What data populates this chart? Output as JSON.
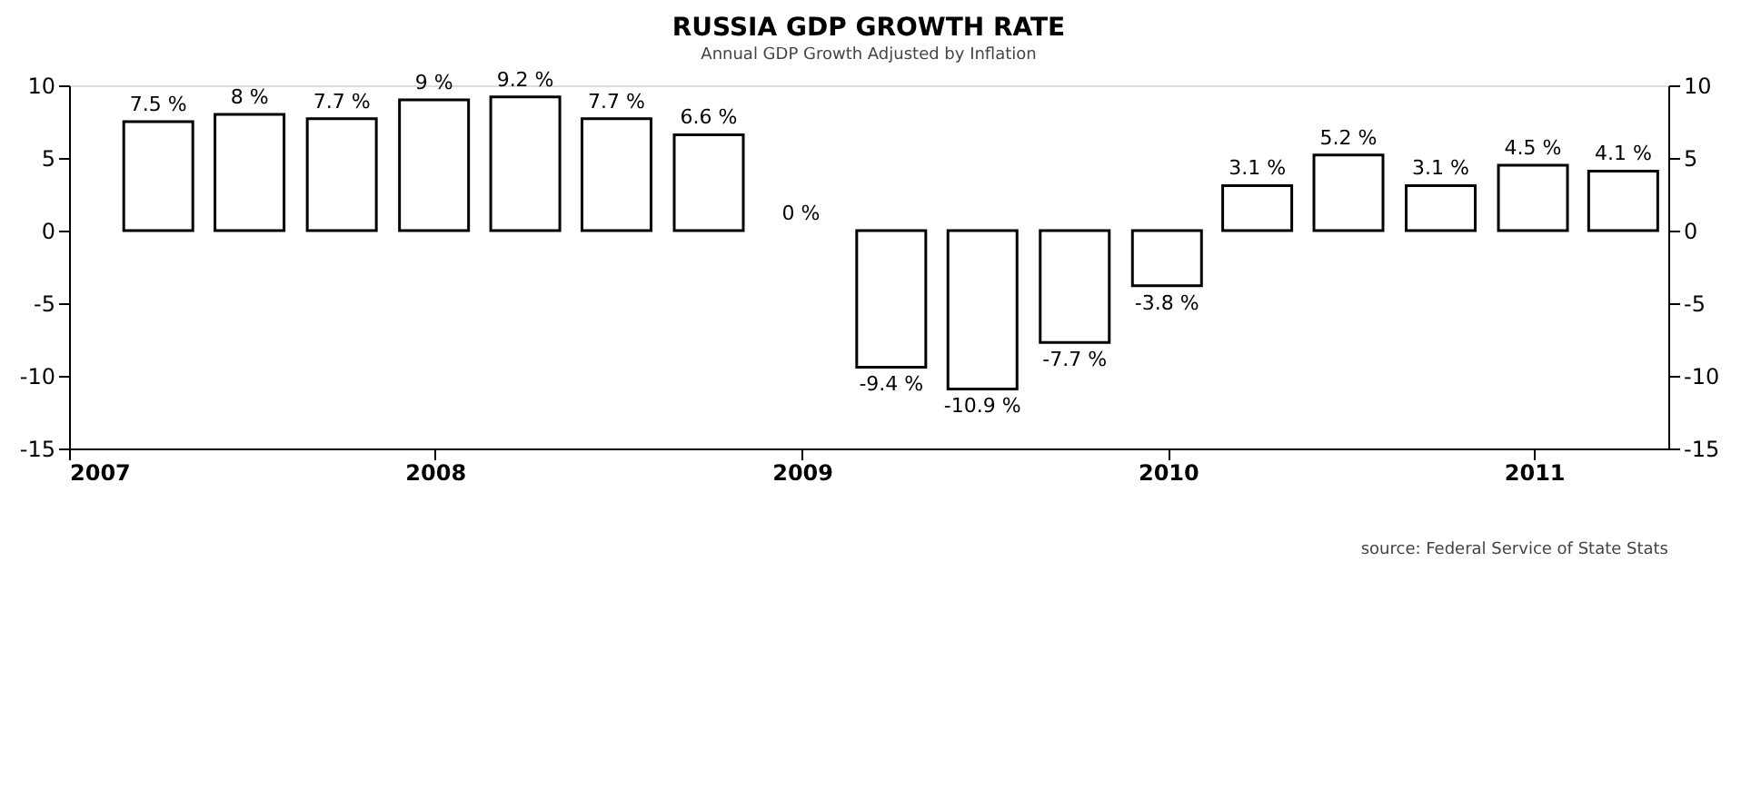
{
  "chart_data": {
    "type": "bar",
    "title": "RUSSIA GDP GROWTH RATE",
    "subtitle": "Annual GDP Growth Adjusted by Inflation",
    "x": [
      "2007-03-31",
      "2007-06-30",
      "2007-09-30",
      "2007-12-31",
      "2008-03-31",
      "2008-06-30",
      "2008-09-30",
      "2008-12-31",
      "2009-03-31",
      "2009-06-30",
      "2009-09-30",
      "2009-12-31",
      "2010-03-31",
      "2010-06-30",
      "2010-09-30",
      "2010-12-31",
      "2011-03-31"
    ],
    "values": [
      7.5,
      8,
      7.7,
      9,
      9.2,
      7.7,
      6.6,
      0,
      -9.4,
      -10.9,
      -7.7,
      -3.8,
      3.1,
      5.2,
      3.1,
      4.5,
      4.1
    ],
    "value_labels": [
      "7.5 %",
      "8 %",
      "7.7 %",
      "9 %",
      "9.2 %",
      "7.7 %",
      "6.6 %",
      "0 %",
      "-9.4 %",
      "-10.9 %",
      "-7.7 %",
      "-3.8 %",
      "3.1 %",
      "5.2 %",
      "3.1 %",
      "4.5 %",
      "4.1 %"
    ],
    "color": "#ffffff",
    "xlim": [
      "2007-01-01",
      "2011-05-15"
    ],
    "xticks": [
      {
        "value": "2007-01-01",
        "label": "2007"
      },
      {
        "value": "2008-01-01",
        "label": "2008"
      },
      {
        "value": "2009-01-01",
        "label": "2009"
      },
      {
        "value": "2010-01-01",
        "label": "2010"
      },
      {
        "value": "2011-01-01",
        "label": "2011"
      }
    ],
    "ylim": [
      -15,
      10
    ],
    "yticks": [
      -15,
      -10,
      -5,
      0,
      5,
      10
    ],
    "y2lim": [
      -15,
      10
    ],
    "y2ticks": [
      -15,
      -10,
      -5,
      0,
      5,
      10
    ],
    "grid": false,
    "annotations": [
      "source: Federal Service of State Stats"
    ]
  }
}
